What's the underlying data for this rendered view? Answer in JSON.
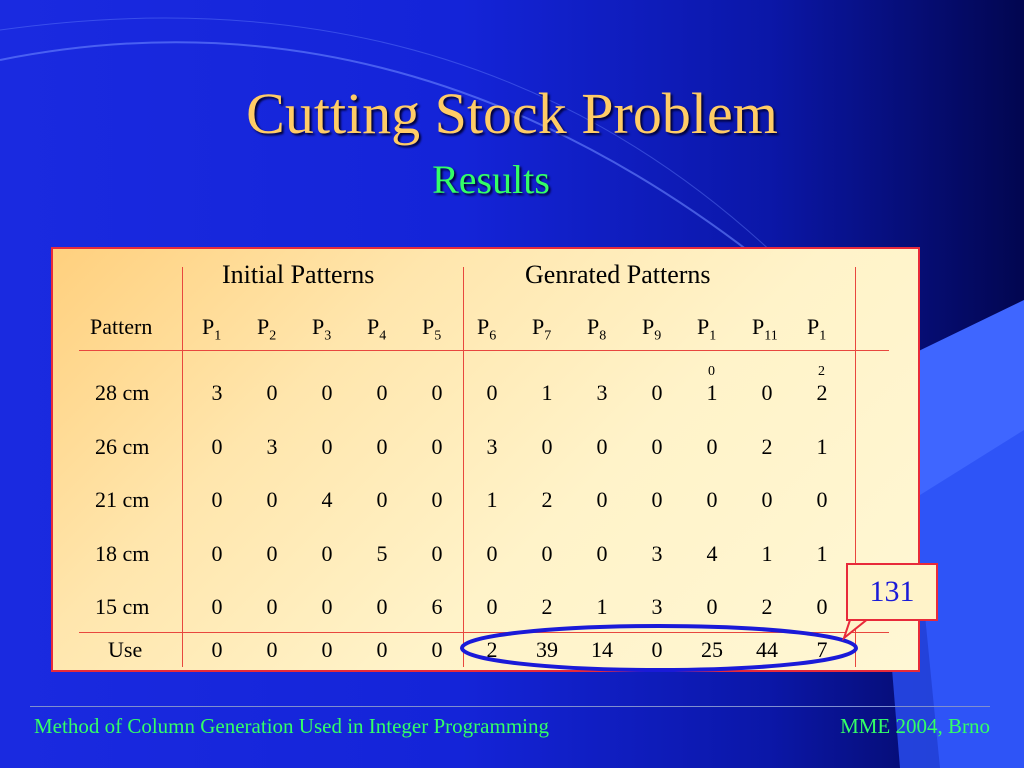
{
  "slide": {
    "title": "Cutting Stock Problem",
    "subtitle": "Results"
  },
  "table": {
    "group_initial": "Initial Patterns",
    "group_generated": "Genrated Patterns",
    "pattern_header": "Pattern",
    "patterns": [
      {
        "base": "P",
        "sub": "1"
      },
      {
        "base": "P",
        "sub": "2"
      },
      {
        "base": "P",
        "sub": "3"
      },
      {
        "base": "P",
        "sub": "4"
      },
      {
        "base": "P",
        "sub": "5"
      },
      {
        "base": "P",
        "sub": "6"
      },
      {
        "base": "P",
        "sub": "7"
      },
      {
        "base": "P",
        "sub": "8"
      },
      {
        "base": "P",
        "sub": "9"
      },
      {
        "base": "P",
        "sub": "1",
        "overflow": "0"
      },
      {
        "base": "P",
        "sub": "11"
      },
      {
        "base": "P",
        "sub": "1",
        "overflow": "2"
      }
    ],
    "rows": [
      {
        "label": "28 cm",
        "values": [
          "3",
          "0",
          "0",
          "0",
          "0",
          "0",
          "1",
          "3",
          "0",
          "1",
          "0",
          "2"
        ]
      },
      {
        "label": "26 cm",
        "values": [
          "0",
          "3",
          "0",
          "0",
          "0",
          "3",
          "0",
          "0",
          "0",
          "0",
          "2",
          "1"
        ]
      },
      {
        "label": "21 cm",
        "values": [
          "0",
          "0",
          "4",
          "0",
          "0",
          "1",
          "2",
          "0",
          "0",
          "0",
          "0",
          "0"
        ]
      },
      {
        "label": "18 cm",
        "values": [
          "0",
          "0",
          "0",
          "5",
          "0",
          "0",
          "0",
          "0",
          "3",
          "4",
          "1",
          "1"
        ]
      },
      {
        "label": "15 cm",
        "values": [
          "0",
          "0",
          "0",
          "0",
          "6",
          "0",
          "2",
          "1",
          "3",
          "0",
          "2",
          "0"
        ]
      }
    ],
    "use_row": {
      "label": "Use",
      "values": [
        "0",
        "0",
        "0",
        "0",
        "0",
        "2",
        "39",
        "14",
        "0",
        "25",
        "44",
        "7"
      ]
    },
    "total_callout": "131"
  },
  "footer": {
    "left": "Method of Column Generation Used in Integer Programming",
    "right": "MME 2004, Brno"
  },
  "colors": {
    "title": "#ffcc66",
    "subtitle": "#33ff66",
    "footer_text": "#33ff66",
    "table_border": "#e82a3a",
    "highlight_ellipse": "#1a1ad8",
    "callout_text": "#1a1ad8"
  }
}
